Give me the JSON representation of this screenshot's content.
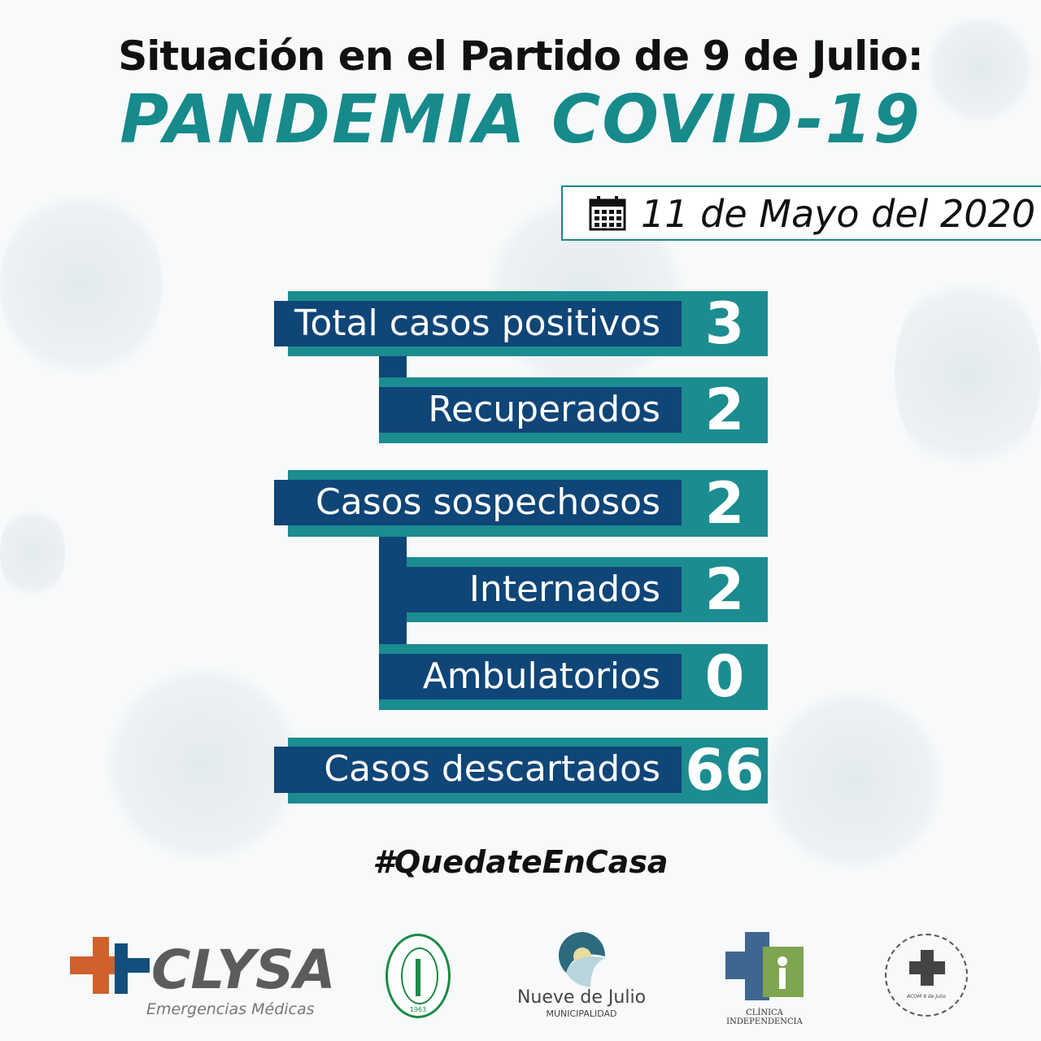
{
  "header": {
    "title": "Situación en el Partido de 9 de Julio:",
    "subtitle": "PANDEMIA COVID-19"
  },
  "date": {
    "icon": "calendar-icon",
    "text": "11 de Mayo del 2020"
  },
  "stats": [
    {
      "label": "Total casos positivos",
      "value": "3"
    },
    {
      "label": "Recuperados",
      "value": "2"
    },
    {
      "label": "Casos sospechosos",
      "value": "2"
    },
    {
      "label": "Internados",
      "value": "2"
    },
    {
      "label": "Ambulatorios",
      "value": "0"
    },
    {
      "label": "Casos descartados",
      "value": "66"
    }
  ],
  "hashtag": "#QuedateEnCasa",
  "logos": [
    {
      "name": "CLYSA",
      "tagline": "Emergencias Médicas"
    },
    {
      "name": "Círculo Médico de 9 de Julio",
      "year": "1963"
    },
    {
      "name": "Nueve de Julio",
      "tagline": "MUNICIPALIDAD"
    },
    {
      "name": "CLÍNICA INDEPENDENCIA"
    },
    {
      "name": "ACOM 9 de Julio"
    }
  ],
  "colors": {
    "teal": "#1b8c90",
    "navy": "#0f4577"
  }
}
